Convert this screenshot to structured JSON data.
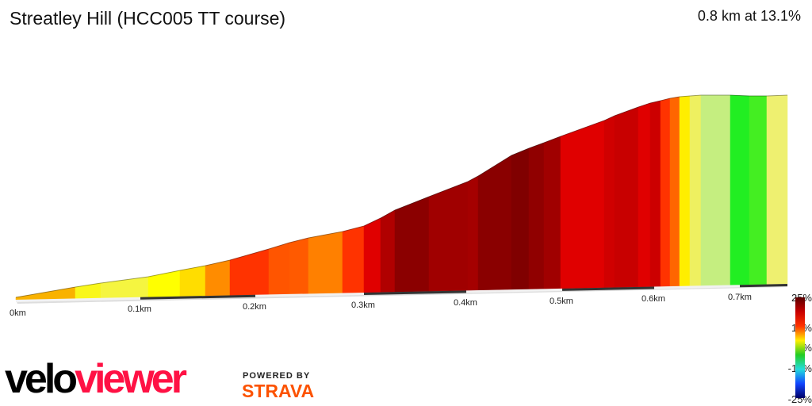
{
  "title": "Streatley Hill (HCC005 TT course)",
  "summary": "0.8 km at 13.1%",
  "x_ticks": [
    "0km",
    "0.1km",
    "0.2km",
    "0.3km",
    "0.4km",
    "0.5km",
    "0.6km",
    "0.7km"
  ],
  "legend": {
    "labels": [
      "25%",
      "10%",
      "0%",
      "-10%",
      "-25%"
    ],
    "colors": [
      "#5a0000",
      "#c80000",
      "#ff3300",
      "#ffee00",
      "#22cc22",
      "#22dddd",
      "#1144ff",
      "#000066"
    ]
  },
  "segment_colors": [
    "#f9b200",
    "#f9f71a",
    "#f5f540",
    "#ffff00",
    "#ffdd00",
    "#ff8c00",
    "#ff3300",
    "#ff5500",
    "#ff5a00",
    "#ff8000",
    "#ff3300",
    "#e00000",
    "#b00000",
    "#8b0000",
    "#a00000",
    "#a50000",
    "#8a0000",
    "#800000",
    "#900000",
    "#a00000",
    "#e00000",
    "#d00000",
    "#c80000",
    "#e00000",
    "#cc0000",
    "#ff3300",
    "#ff6600",
    "#ffee00",
    "#eef060",
    "#c5ee80",
    "#22ee22",
    "#44ee22",
    "#eef070"
  ],
  "logo": {
    "velo": "velo",
    "viewer": "viewer",
    "powered_by": "POWERED BY",
    "strava": "STRAVA"
  }
}
